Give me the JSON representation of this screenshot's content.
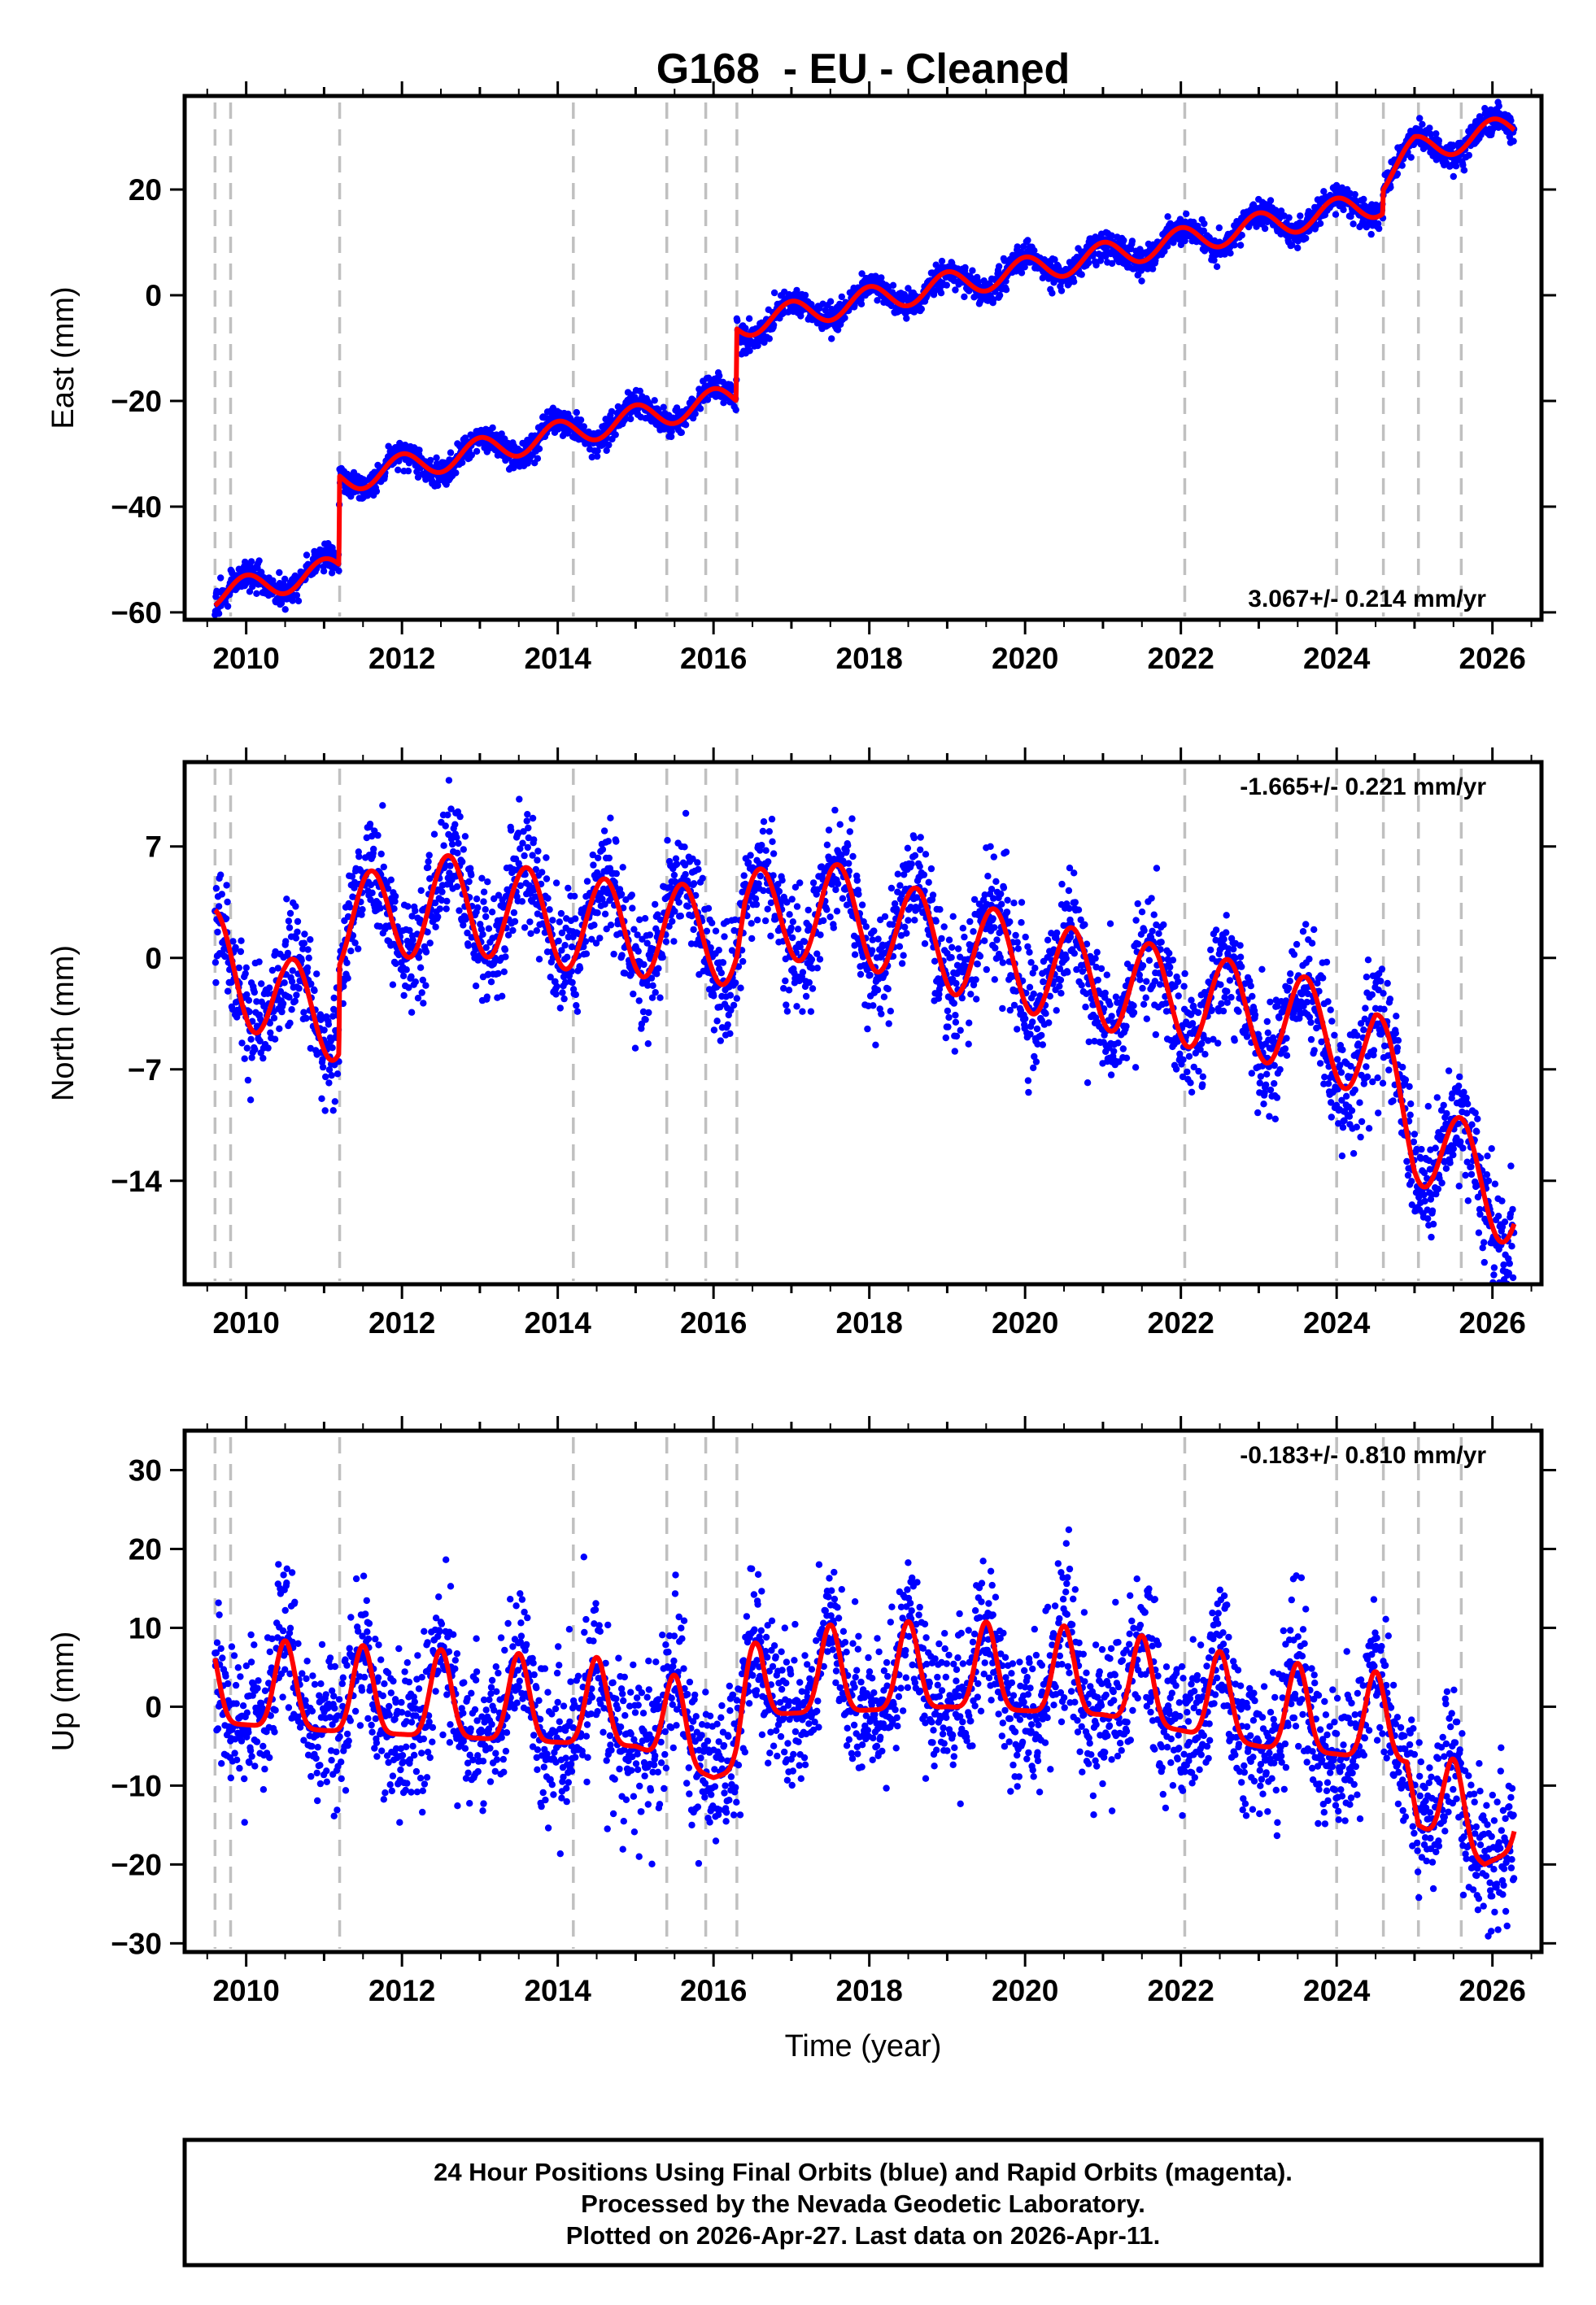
{
  "chart_data": {
    "type": "scatter",
    "title": "G168  - EU - Cleaned",
    "xlabel": "Time (year)",
    "xlim": [
      2009.21,
      2026.63
    ],
    "xticks": [
      2010,
      2012,
      2014,
      2016,
      2018,
      2020,
      2022,
      2024,
      2026
    ],
    "xtick_labels": [
      "2010",
      "2012",
      "2014",
      "2016",
      "2018",
      "2020",
      "2022",
      "2024",
      "2026"
    ],
    "data_range": [
      2009.6,
      2026.28
    ],
    "equipment_change_lines": [
      2009.6,
      2009.8,
      2011.2,
      2014.2,
      2015.4,
      2015.9,
      2016.3,
      2022.05,
      2024.0,
      2024.6,
      2025.05,
      2025.6
    ],
    "colors": {
      "points": "#0000ff",
      "model": "#ff0000",
      "event_lines": "#c0c0c0"
    },
    "panels": [
      {
        "name": "east",
        "ylabel": "East (mm)",
        "ylim": [
          -61.4,
          37.7
        ],
        "yticks": [
          20,
          0,
          -20,
          -40,
          -60
        ],
        "ytick_labels": [
          "20",
          "0",
          "−20",
          "−40",
          "−60"
        ],
        "rate_text": "3.067+/- 0.214 mm/yr",
        "rate_placement": "bottom-right",
        "model": {
          "shape": "cosine",
          "amplitude": 2.5,
          "peak_phase": 0.0,
          "baseline": [
            [
              2009.6,
              -56.7
            ],
            [
              2011.19,
              -51.8
            ],
            [
              2011.2,
              -35
            ],
            [
              2016.29,
              -19.3
            ],
            [
              2016.3,
              -5.6
            ],
            [
              2024.59,
              17.5
            ],
            [
              2024.6,
              22
            ],
            [
              2025.0,
              27.5
            ],
            [
              2026.3,
              31.8
            ]
          ]
        },
        "noise_std": 1.3
      },
      {
        "name": "north",
        "ylabel": "North (mm)",
        "ylim": [
          -20.5,
          12.3
        ],
        "yticks": [
          7,
          0,
          -7,
          -14
        ],
        "ytick_labels": [
          "7",
          "0",
          "−7",
          "−14"
        ],
        "rate_text": "-1.665+/- 0.221 mm/yr",
        "rate_placement": "top-right",
        "model": {
          "shape": "cosine",
          "amplitude": 3.0,
          "peak_phase": 0.6,
          "baseline": [
            [
              2009.6,
              0
            ],
            [
              2010.5,
              -3
            ],
            [
              2011.19,
              -3.5
            ],
            [
              2011.2,
              2
            ],
            [
              2012.5,
              3.5
            ],
            [
              2014.5,
              2
            ],
            [
              2016.0,
              1.5
            ],
            [
              2016.3,
              1
            ],
            [
              2016.4,
              2.5
            ],
            [
              2017.5,
              3
            ],
            [
              2019.0,
              0.8
            ],
            [
              2020.5,
              -1
            ],
            [
              2022.0,
              -2.5
            ],
            [
              2023.5,
              -4
            ],
            [
              2024.5,
              -6
            ],
            [
              2025.0,
              -11
            ],
            [
              2026.3,
              -15.5
            ]
          ]
        },
        "noise_std": 1.8
      },
      {
        "name": "up",
        "ylabel": "Up (mm)",
        "ylim": [
          -31.1,
          35
        ],
        "yticks": [
          30,
          20,
          10,
          0,
          -10,
          -20,
          -30
        ],
        "ytick_labels": [
          "30",
          "20",
          "10",
          "0",
          "−10",
          "−20",
          "−30"
        ],
        "rate_text": "-0.183+/- 0.810 mm/yr",
        "rate_placement": "top-right",
        "model": {
          "shape": "peaked",
          "amplitude": 11,
          "peak_phase": 0.5,
          "sharpness": 3,
          "baseline": [
            [
              2009.6,
              -2
            ],
            [
              2011.0,
              -3
            ],
            [
              2013.0,
              -4
            ],
            [
              2015.0,
              -5
            ],
            [
              2016.0,
              -9
            ],
            [
              2016.3,
              -8
            ],
            [
              2016.6,
              -1
            ],
            [
              2019.0,
              0
            ],
            [
              2021.0,
              -1
            ],
            [
              2022.0,
              -3
            ],
            [
              2023.0,
              -5
            ],
            [
              2024.0,
              -6
            ],
            [
              2024.9,
              -7
            ],
            [
              2025.05,
              -15
            ],
            [
              2025.9,
              -20
            ],
            [
              2026.3,
              -18
            ]
          ]
        },
        "noise_std": 4.5
      }
    ],
    "footer": [
      "24 Hour Positions Using Final Orbits (blue) and Rapid Orbits (magenta).",
      "Processed by the Nevada Geodetic Laboratory.",
      "Plotted on 2026-Apr-27. Last data on 2026-Apr-11."
    ]
  }
}
